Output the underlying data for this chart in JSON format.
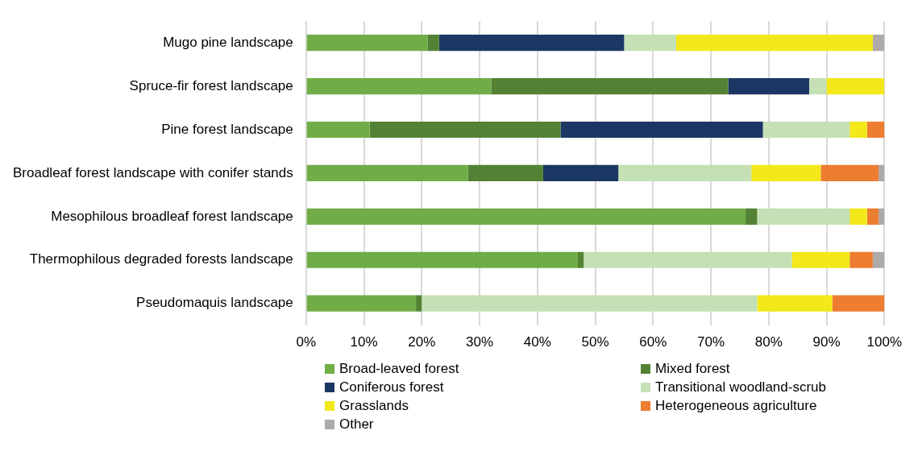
{
  "chart_data": {
    "type": "bar",
    "orientation": "horizontal",
    "stacked": true,
    "grid": "x",
    "legend": "bottom",
    "categories": [
      "Mugo pine landscape",
      "Spruce-fir forest landscape",
      "Pine forest landscape",
      "Broadleaf forest landscape with conifer stands",
      "Mesophilous broadleaf forest landscape",
      "Thermophilous degraded forests landscape",
      "Pseudomaquis landscape"
    ],
    "series": [
      {
        "name": "Broad-leaved forest",
        "color": "#70ad47",
        "values": [
          21,
          32,
          11,
          28,
          76,
          47,
          19
        ]
      },
      {
        "name": "Mixed forest",
        "color": "#548235",
        "values": [
          2,
          41,
          33,
          13,
          2,
          1,
          1
        ]
      },
      {
        "name": "Coniferous forest",
        "color": "#1c3764",
        "values": [
          32,
          14,
          35,
          13,
          0,
          0,
          0
        ]
      },
      {
        "name": "Transitional woodland-scrub",
        "color": "#c5e0b4",
        "values": [
          9,
          3,
          15,
          23,
          16,
          36,
          58
        ]
      },
      {
        "name": "Grasslands",
        "color": "#f2e81a",
        "values": [
          34,
          10,
          3,
          12,
          3,
          10,
          13
        ]
      },
      {
        "name": "Heterogeneous agriculture",
        "color": "#ed7d31",
        "values": [
          0,
          0,
          3,
          10,
          2,
          4,
          9
        ]
      },
      {
        "name": "Other",
        "color": "#aeaaaa",
        "values": [
          2,
          0,
          0,
          1,
          1,
          2,
          0
        ]
      }
    ],
    "xlim": [
      0,
      100
    ],
    "xticks": [
      {
        "value": 0,
        "label": "0%"
      },
      {
        "value": 10,
        "label": "10%"
      },
      {
        "value": 20,
        "label": "20%"
      },
      {
        "value": 30,
        "label": "30%"
      },
      {
        "value": 40,
        "label": "40%"
      },
      {
        "value": 50,
        "label": "50%"
      },
      {
        "value": 60,
        "label": "60%"
      },
      {
        "value": 70,
        "label": "70%"
      },
      {
        "value": 80,
        "label": "80%"
      },
      {
        "value": 90,
        "label": "90%"
      },
      {
        "value": 100,
        "label": "100%"
      }
    ]
  }
}
